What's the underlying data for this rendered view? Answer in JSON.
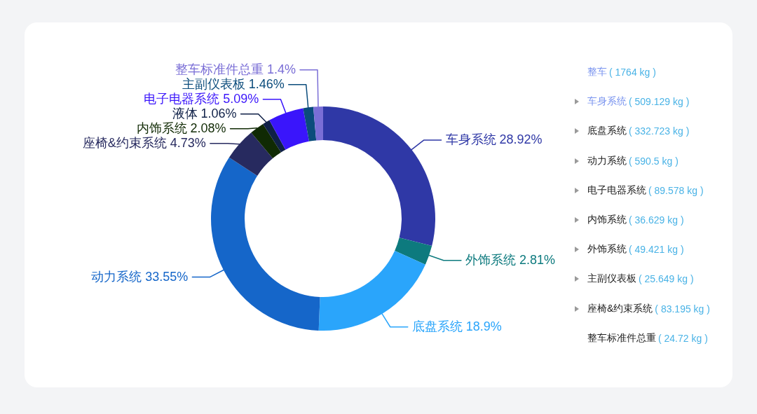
{
  "chart_data": [
    {
      "type": "donut",
      "categories": [
        "车身系统",
        "外饰系统",
        "底盘系统",
        "动力系统",
        "座椅&约束系统",
        "内饰系统",
        "液体",
        "电子电器系统",
        "主副仪表板",
        "整车标准件总重"
      ],
      "values": [
        28.92,
        2.81,
        18.9,
        33.55,
        4.73,
        2.08,
        1.06,
        5.09,
        1.46,
        1.4
      ],
      "value_labels": [
        "28.92%",
        "2.81%",
        "18.9%",
        "33.55%",
        "4.73%",
        "2.08%",
        "1.06%",
        "5.09%",
        "1.46%",
        "1.4%"
      ],
      "colors": [
        "#2f38a6",
        "#0d7a7e",
        "#2aa5fb",
        "#1566c9",
        "#272a5f",
        "#102a04",
        "#0f2047",
        "#3a15fb",
        "#0b4c7c",
        "#7a6ed6"
      ]
    },
    {
      "type": "other",
      "categories": [
        "整车",
        "车身系统",
        "底盘系统",
        "动力系统",
        "电子电器系统",
        "内饰系统",
        "外饰系统",
        "主副仪表板",
        "座椅&约束系统",
        "整车标准件总重"
      ],
      "value_labels": [
        "( 1764 kg )",
        "( 509.129 kg )",
        "( 332.723 kg )",
        "( 590.5 kg )",
        "( 89.578 kg )",
        "( 36.629 kg )",
        "( 49.421 kg )",
        "( 25.649 kg )",
        "( 83.195 kg )",
        "( 24.72 kg )"
      ],
      "colors": [
        "#7b95ef",
        "#7b95ef",
        "#222222",
        "#222222",
        "#222222",
        "#222222",
        "#222222",
        "#222222",
        "#222222",
        "#222222"
      ],
      "color": "#4ab3e6"
    }
  ]
}
